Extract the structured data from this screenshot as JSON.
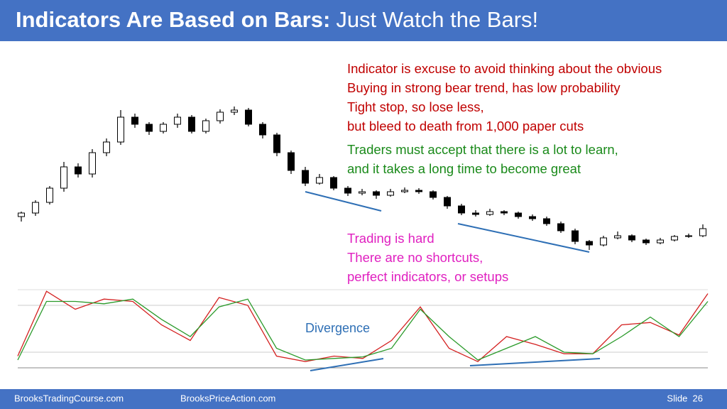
{
  "header": {
    "title_bold": "Indicators Are Based on Bars:",
    "title_rest": "Just Watch the Bars!"
  },
  "chart_data": {
    "type": "candlestick",
    "xlim": [
      0,
      48
    ],
    "ylim": [
      40,
      260
    ],
    "up_color": "#ffffff",
    "down_color": "#000000",
    "candles": [
      [
        95,
        102,
        88,
        100
      ],
      [
        100,
        118,
        96,
        115
      ],
      [
        115,
        138,
        112,
        135
      ],
      [
        135,
        172,
        130,
        165
      ],
      [
        165,
        170,
        150,
        155
      ],
      [
        155,
        190,
        150,
        185
      ],
      [
        185,
        205,
        180,
        200
      ],
      [
        200,
        245,
        196,
        235
      ],
      [
        235,
        240,
        220,
        225
      ],
      [
        225,
        228,
        210,
        215
      ],
      [
        215,
        228,
        212,
        225
      ],
      [
        225,
        240,
        220,
        235
      ],
      [
        235,
        238,
        212,
        215
      ],
      [
        215,
        233,
        212,
        230
      ],
      [
        230,
        246,
        226,
        242
      ],
      [
        242,
        250,
        238,
        245
      ],
      [
        245,
        248,
        222,
        225
      ],
      [
        225,
        228,
        205,
        210
      ],
      [
        210,
        213,
        180,
        185
      ],
      [
        185,
        188,
        155,
        160
      ],
      [
        160,
        165,
        138,
        142
      ],
      [
        142,
        155,
        140,
        150
      ],
      [
        150,
        152,
        132,
        135
      ],
      [
        135,
        138,
        124,
        128
      ],
      [
        128,
        134,
        125,
        130
      ],
      [
        130,
        132,
        120,
        125
      ],
      [
        125,
        134,
        123,
        130
      ],
      [
        130,
        136,
        128,
        132
      ],
      [
        132,
        135,
        127,
        130
      ],
      [
        130,
        132,
        119,
        122
      ],
      [
        122,
        124,
        106,
        110
      ],
      [
        110,
        113,
        97,
        100
      ],
      [
        100,
        104,
        95,
        98
      ],
      [
        98,
        106,
        96,
        102
      ],
      [
        102,
        104,
        97,
        100
      ],
      [
        100,
        102,
        92,
        95
      ],
      [
        95,
        98,
        89,
        92
      ],
      [
        92,
        95,
        82,
        85
      ],
      [
        85,
        88,
        72,
        75
      ],
      [
        75,
        78,
        56,
        60
      ],
      [
        60,
        62,
        48,
        55
      ],
      [
        55,
        68,
        53,
        65
      ],
      [
        65,
        74,
        63,
        68
      ],
      [
        68,
        70,
        59,
        62
      ],
      [
        62,
        64,
        55,
        58
      ],
      [
        58,
        65,
        56,
        62
      ],
      [
        62,
        69,
        60,
        67
      ],
      [
        67,
        71,
        65,
        68
      ],
      [
        68,
        84,
        66,
        78
      ]
    ]
  },
  "oscillator": {
    "type": "line",
    "xlim": [
      0,
      48
    ],
    "ylim": [
      0,
      100
    ],
    "levels": [
      20,
      80
    ],
    "x": [
      0,
      2,
      4,
      6,
      8,
      10,
      12,
      14,
      16,
      18,
      20,
      22,
      24,
      26,
      28,
      30,
      32,
      34,
      36,
      38,
      40,
      42,
      44,
      46,
      48
    ],
    "series": [
      {
        "color": "#d42020",
        "values": [
          15,
          98,
          75,
          88,
          85,
          55,
          35,
          90,
          80,
          15,
          8,
          15,
          12,
          35,
          78,
          25,
          8,
          40,
          30,
          18,
          18,
          55,
          58,
          42,
          95
        ]
      },
      {
        "color": "#2a9a2a",
        "values": [
          10,
          85,
          85,
          82,
          88,
          62,
          40,
          78,
          88,
          25,
          10,
          12,
          14,
          25,
          75,
          40,
          10,
          25,
          40,
          20,
          18,
          40,
          65,
          40,
          85
        ]
      }
    ],
    "annotation": "Divergence"
  },
  "notes": {
    "red": [
      "Indicator is excuse to avoid thinking about the obvious",
      "Buying in strong bear trend, has low probability",
      "Tight stop, so lose less,",
      "but bleed to death from 1,000 paper cuts"
    ],
    "green": [
      "Traders must accept that there is a lot to learn,",
      "and it takes a long time to become great"
    ],
    "magenta": [
      "Trading is hard",
      "There are no shortcuts,",
      "perfect indicators, or setups"
    ]
  },
  "footer": {
    "left": "BrooksTradingCourse.com",
    "middle": "BrooksPriceAction.com",
    "slide": "Slide  26"
  }
}
